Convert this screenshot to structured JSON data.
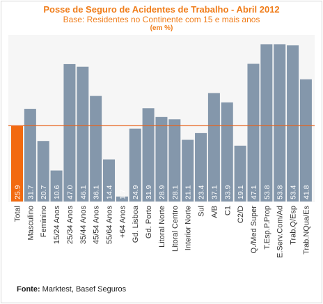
{
  "chart_data": {
    "type": "bar",
    "title": "Posse de Seguro de Acidentes de Trabalho - Abril 2012",
    "subtitle": "Base: Residentes no Continente com 15 e mais anos",
    "unit_note": "(em %)",
    "categories": [
      "Total",
      "Masculino",
      "Feminino",
      "15/24 Anos",
      "25/34 Anos",
      "35/44 Anos",
      "45/54 Anos",
      "55/64 Anos",
      "+64 Anos",
      "Gd. Lisboa",
      "Gd. Porto",
      "Litoral Norte",
      "Litoral Centro",
      "Interior Norte",
      "Sul",
      "A/B",
      "C1",
      "C2/D",
      "Q./Med Super",
      "T.Esp.P.Prop",
      "E.Serv.Com/Ad",
      "Trab.Q/Esp",
      "Trab.NQua/Es"
    ],
    "values": [
      25.9,
      31.7,
      20.7,
      10.6,
      47.0,
      46.1,
      36.1,
      14.4,
      1.7,
      24.9,
      31.9,
      28.9,
      28.1,
      21.1,
      23.4,
      37.1,
      33.9,
      19.1,
      47.1,
      53.8,
      53.8,
      53.4,
      41.8
    ],
    "value_labels": [
      "25.9",
      "31.7",
      "20.7",
      "10.6",
      "47.0",
      "46.1",
      "36.1",
      "14.4",
      "1.7",
      "24.9",
      "31.9",
      "28.9",
      "28.1",
      "21.1",
      "23.4",
      "37.1",
      "33.9",
      "19.1",
      "47.1",
      "53.8",
      "53.8",
      "53.4",
      "41.8"
    ],
    "highlight_index": 0,
    "reference_line": 25.9,
    "ylim": [
      0,
      57
    ],
    "colors": {
      "bar": "#8497ab",
      "highlight": "#f26a10",
      "line": "#e8621a",
      "title": "#f07d1a"
    }
  },
  "source": {
    "label": "Fonte:",
    "text": "Marktest, Basef Seguros"
  }
}
